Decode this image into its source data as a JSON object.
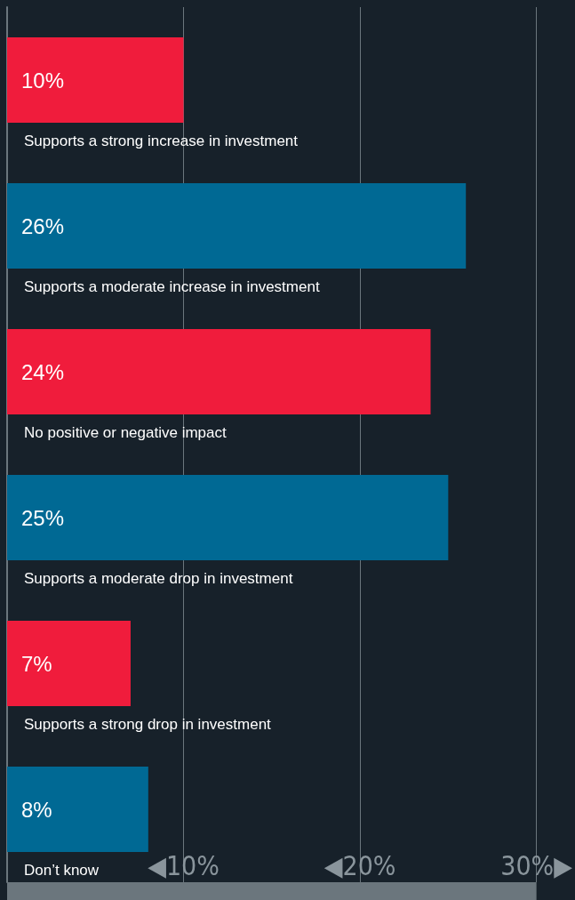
{
  "chart_data": {
    "type": "bar",
    "orientation": "horizontal",
    "categories": [
      "Supports a strong increase in investment",
      "Supports a moderate increase in investment",
      "No positive or negative impact",
      "Supports a moderate drop in investment",
      "Supports a strong drop in investment",
      "Don’t know"
    ],
    "values": [
      10,
      26,
      24,
      25,
      7,
      8
    ],
    "colors": [
      "#f01c3c",
      "#006994",
      "#f01c3c",
      "#006994",
      "#f01c3c",
      "#006994"
    ],
    "value_labels": [
      "10%",
      "26%",
      "24%",
      "25%",
      "7%",
      "8%"
    ],
    "xlim": [
      0,
      30
    ],
    "xticks": [
      {
        "value": 10,
        "label": "◀10%"
      },
      {
        "value": 20,
        "label": "◀20%"
      },
      {
        "value": 30,
        "label": "30%▶"
      }
    ],
    "grid": "x"
  }
}
